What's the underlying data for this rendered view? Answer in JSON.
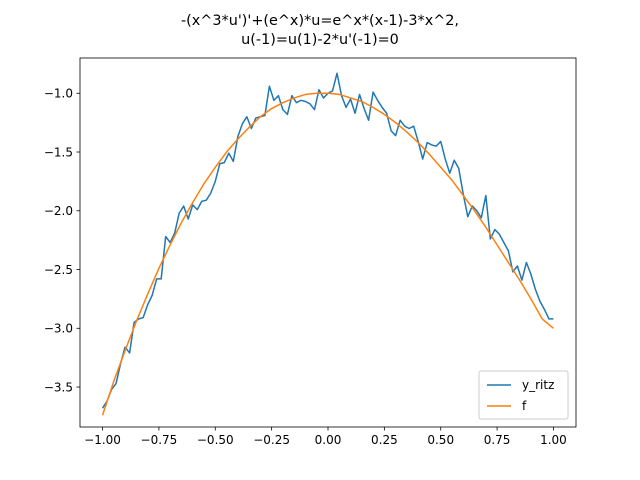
{
  "chart_data": {
    "type": "line",
    "title_lines": [
      "-(x^3*u')'+(e^x)*u=e^x*(x-1)-3*x^2,",
      "u(-1)=u(1)-2*u'(-1)=0"
    ],
    "xlabel": "",
    "ylabel": "",
    "xlim": [
      -1.1,
      1.1
    ],
    "ylim": [
      -3.84,
      -0.7
    ],
    "x_ticks": [
      -1.0,
      -0.75,
      -0.5,
      -0.25,
      0.0,
      0.25,
      0.5,
      0.75,
      1.0
    ],
    "x_tick_labels": [
      "−1.00",
      "−0.75",
      "−0.50",
      "−0.25",
      "0.00",
      "0.25",
      "0.50",
      "0.75",
      "1.00"
    ],
    "y_ticks": [
      -3.5,
      -3.0,
      -2.5,
      -2.0,
      -1.5,
      -1.0
    ],
    "y_tick_labels": [
      "−3.5",
      "−3.0",
      "−2.5",
      "−2.0",
      "−1.5",
      "−1.0"
    ],
    "grid": false,
    "legend_position": "lower-right",
    "series": [
      {
        "name": "y_ritz",
        "color": "#1f77b4",
        "x": [
          -1.0,
          -0.98,
          -0.96,
          -0.94,
          -0.92,
          -0.9,
          -0.88,
          -0.86,
          -0.84,
          -0.82,
          -0.8,
          -0.78,
          -0.76,
          -0.74,
          -0.72,
          -0.7,
          -0.68,
          -0.66,
          -0.64,
          -0.62,
          -0.6,
          -0.58,
          -0.56,
          -0.54,
          -0.52,
          -0.5,
          -0.48,
          -0.46,
          -0.44,
          -0.42,
          -0.4,
          -0.38,
          -0.36,
          -0.34,
          -0.32,
          -0.3,
          -0.28,
          -0.26,
          -0.24,
          -0.22,
          -0.2,
          -0.18,
          -0.16,
          -0.14,
          -0.12,
          -0.1,
          -0.08,
          -0.06,
          -0.04,
          -0.02,
          0.0,
          0.02,
          0.04,
          0.06,
          0.08,
          0.1,
          0.12,
          0.14,
          0.16,
          0.18,
          0.2,
          0.22,
          0.24,
          0.26,
          0.28,
          0.3,
          0.32,
          0.34,
          0.36,
          0.38,
          0.4,
          0.42,
          0.44,
          0.46,
          0.48,
          0.5,
          0.52,
          0.54,
          0.56,
          0.58,
          0.6,
          0.62,
          0.64,
          0.66,
          0.68,
          0.7,
          0.72,
          0.74,
          0.76,
          0.78,
          0.8,
          0.82,
          0.84,
          0.86,
          0.88,
          0.9,
          0.92,
          0.94,
          0.96,
          0.98,
          1.0
        ],
        "y": [
          -3.68,
          -3.62,
          -3.52,
          -3.47,
          -3.3,
          -3.16,
          -3.21,
          -2.95,
          -2.92,
          -2.91,
          -2.8,
          -2.72,
          -2.58,
          -2.58,
          -2.22,
          -2.27,
          -2.19,
          -2.02,
          -1.96,
          -2.07,
          -1.95,
          -1.99,
          -1.92,
          -1.91,
          -1.85,
          -1.75,
          -1.6,
          -1.59,
          -1.51,
          -1.58,
          -1.37,
          -1.26,
          -1.2,
          -1.3,
          -1.21,
          -1.2,
          -1.19,
          -0.94,
          -1.06,
          -1.02,
          -1.14,
          -1.18,
          -1.02,
          -1.08,
          -1.06,
          -1.07,
          -1.09,
          -1.14,
          -0.97,
          -1.04,
          -1.0,
          -0.98,
          -0.83,
          -1.02,
          -1.12,
          -1.05,
          -1.17,
          -1.01,
          -1.13,
          -1.23,
          -0.99,
          -1.06,
          -1.12,
          -1.17,
          -1.32,
          -1.36,
          -1.23,
          -1.28,
          -1.3,
          -1.28,
          -1.41,
          -1.56,
          -1.42,
          -1.44,
          -1.45,
          -1.41,
          -1.56,
          -1.68,
          -1.57,
          -1.64,
          -1.86,
          -2.05,
          -1.96,
          -2.0,
          -2.06,
          -1.87,
          -2.24,
          -2.16,
          -2.2,
          -2.27,
          -2.34,
          -2.52,
          -2.47,
          -2.59,
          -2.44,
          -2.54,
          -2.67,
          -2.77,
          -2.84,
          -2.92,
          -2.92
        ]
      },
      {
        "name": "f",
        "color": "#ff7f0e",
        "expression": "e^(x)*(x-1)-3*x^2 evaluated visually; shown curve",
        "x": [
          -1.0,
          -0.95,
          -0.9,
          -0.85,
          -0.8,
          -0.75,
          -0.7,
          -0.65,
          -0.6,
          -0.55,
          -0.5,
          -0.45,
          -0.4,
          -0.35,
          -0.3,
          -0.25,
          -0.2,
          -0.15,
          -0.1,
          -0.05,
          0.0,
          0.05,
          0.1,
          0.15,
          0.2,
          0.25,
          0.3,
          0.35,
          0.4,
          0.45,
          0.5,
          0.55,
          0.6,
          0.65,
          0.7,
          0.75,
          0.8,
          0.85,
          0.9,
          0.95,
          1.0
        ],
        "y": [
          -3.74,
          -3.45,
          -3.19,
          -2.94,
          -2.71,
          -2.49,
          -2.29,
          -2.1,
          -1.93,
          -1.77,
          -1.63,
          -1.5,
          -1.39,
          -1.29,
          -1.2,
          -1.13,
          -1.08,
          -1.04,
          -1.01,
          -1.0,
          -1.0,
          -1.01,
          -1.04,
          -1.07,
          -1.12,
          -1.18,
          -1.25,
          -1.33,
          -1.42,
          -1.52,
          -1.63,
          -1.74,
          -1.87,
          -2.0,
          -2.14,
          -2.29,
          -2.44,
          -2.59,
          -2.75,
          -2.92,
          -3.0
        ]
      }
    ]
  }
}
